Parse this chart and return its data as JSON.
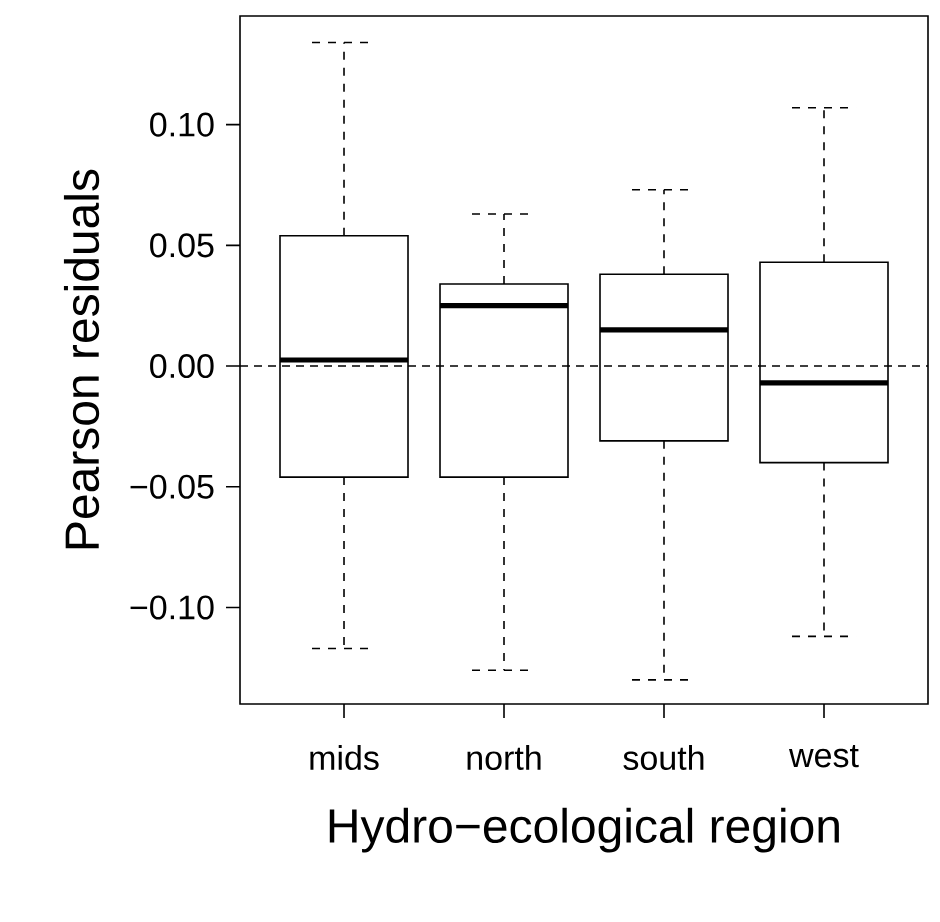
{
  "chart_data": {
    "type": "box",
    "xlabel": "Hydro−ecological region",
    "ylabel": "Pearson residuals",
    "categories": [
      "mids",
      "north",
      "south",
      "west"
    ],
    "boxes": [
      {
        "low": -0.117,
        "q1": -0.046,
        "median": 0.0025,
        "q3": 0.054,
        "high": 0.134
      },
      {
        "low": -0.126,
        "q1": -0.046,
        "median": 0.025,
        "q3": 0.034,
        "high": 0.063
      },
      {
        "low": -0.13,
        "q1": -0.031,
        "median": 0.015,
        "q3": 0.038,
        "high": 0.073
      },
      {
        "low": -0.112,
        "q1": -0.04,
        "median": -0.007,
        "q3": 0.043,
        "high": 0.107
      }
    ],
    "color": "#000000",
    "ylim": [
      -0.14,
      0.145
    ],
    "yticks": [
      {
        "value": -0.1,
        "label": "−0.10"
      },
      {
        "value": -0.05,
        "label": "−0.05"
      },
      {
        "value": 0,
        "label": "0.00"
      },
      {
        "value": 0.05,
        "label": "0.05"
      },
      {
        "value": 0.1,
        "label": "0.10"
      }
    ],
    "ref_lines": [
      {
        "axis": "y",
        "value": 0,
        "line_style": "dashed"
      }
    ]
  }
}
